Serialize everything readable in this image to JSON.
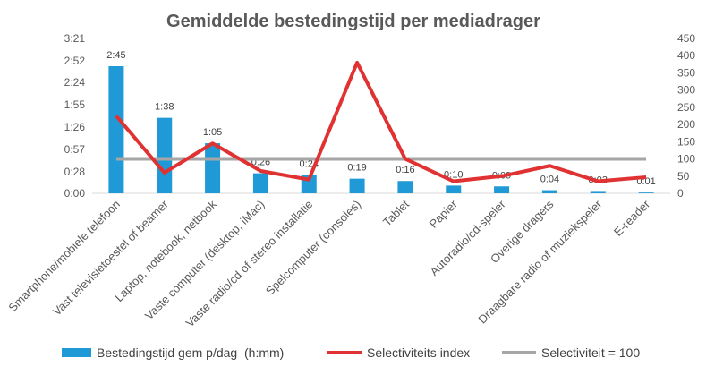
{
  "chart_data": {
    "type": "bar",
    "title": "Gemiddelde bestedingstijd per mediadrager",
    "categories": [
      "Smartphone/mobiele telefoon",
      "Vast televisietoestel of beamer",
      "Laptop, notebook, netbook",
      "Vaste computer (desktop, iMac)",
      "Vaste radio/cd of stereo installatie",
      "Spelcomputer (consoles)",
      "Tablet",
      "Papier",
      "Autoradio/cd-speler",
      "Overige dragers",
      "Draagbare radio of muziekspeler",
      "E-reader"
    ],
    "series": [
      {
        "name": "Bestedingstijd gem p/dag  (h:mm)",
        "type": "bar",
        "axis": "left",
        "color": "#1f9ad6",
        "values_minutes": [
          165,
          98,
          65,
          26,
          24,
          19,
          16,
          10,
          9,
          4,
          3,
          1
        ],
        "data_labels": [
          "2:45",
          "1:38",
          "1:05",
          "0:26",
          "0:24",
          "0:19",
          "0:16",
          "0:10",
          "0:09",
          "0:04",
          "0:03",
          "0:01"
        ]
      },
      {
        "name": "Selectiviteits index",
        "type": "line",
        "axis": "right",
        "color": "#e03232",
        "values": [
          225,
          60,
          145,
          65,
          40,
          380,
          100,
          35,
          50,
          80,
          35,
          47
        ]
      },
      {
        "name": "Selectiviteit = 100",
        "type": "line",
        "axis": "right",
        "color": "#a6a6a6",
        "values": [
          100,
          100,
          100,
          100,
          100,
          100,
          100,
          100,
          100,
          100,
          100,
          100
        ]
      }
    ],
    "y_left": {
      "unit": "minutes",
      "ylim": [
        0,
        201
      ],
      "tick_values": [
        0,
        28,
        57,
        86,
        115,
        144,
        172,
        201
      ],
      "tick_labels": [
        "0:00",
        "0:28",
        "0:57",
        "1:26",
        "1:55",
        "2:24",
        "2:52",
        "3:21"
      ]
    },
    "y_right": {
      "ylim": [
        0,
        450
      ],
      "tick_values": [
        0,
        50,
        100,
        150,
        200,
        250,
        300,
        350,
        400,
        450
      ],
      "tick_labels": [
        "0",
        "50",
        "100",
        "150",
        "200",
        "250",
        "300",
        "350",
        "400",
        "450"
      ]
    },
    "grid": false,
    "legend_position": "bottom"
  }
}
